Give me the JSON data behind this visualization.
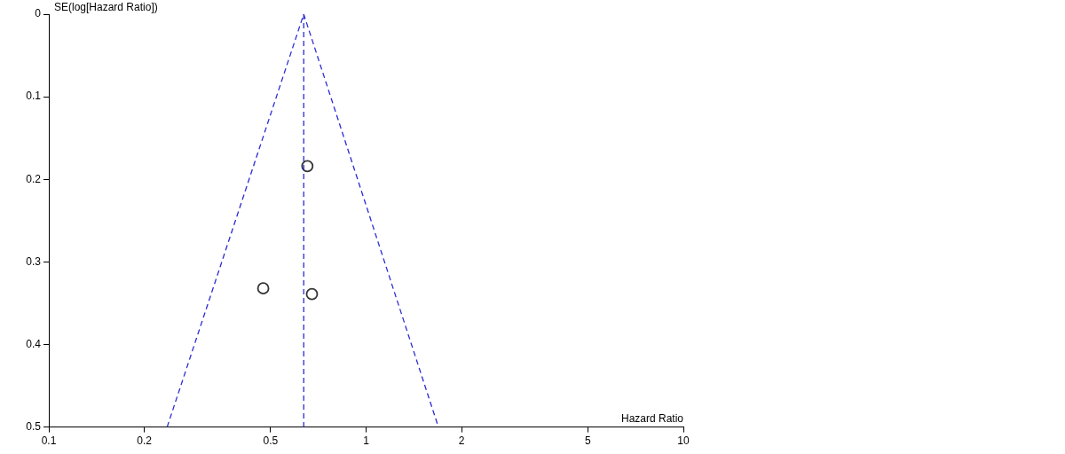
{
  "chart_data": {
    "type": "scatter",
    "xlabel": "Hazard Ratio",
    "ylabel": "SE(log[Hazard Ratio])",
    "log": "x",
    "xlim": [
      0.1,
      10
    ],
    "xticks": [
      0.1,
      0.2,
      0.5,
      1,
      2,
      5,
      10
    ],
    "ylim": [
      0.5,
      0
    ],
    "yticks": [
      0,
      0.1,
      0.2,
      0.3,
      0.4,
      0.5
    ],
    "grid": false,
    "legend": false,
    "series": [
      {
        "type": "scatter",
        "color": "#333333",
        "marker": "circle",
        "x": [
          0.653,
          0.474,
          0.675
        ],
        "values": [
          0.184,
          0.332,
          0.339
        ]
      },
      {
        "type": "line",
        "color": "#2b2bd6",
        "marker": "none",
        "line_style": "dashed",
        "x": [
          0.236,
          0.636,
          1.69
        ],
        "values": [
          0.5,
          0,
          0.5
        ]
      }
    ],
    "ref_lines": [
      {
        "axis": "x",
        "value": 0.636,
        "color": "#2b2bd6",
        "line_style": "dashed"
      }
    ]
  }
}
